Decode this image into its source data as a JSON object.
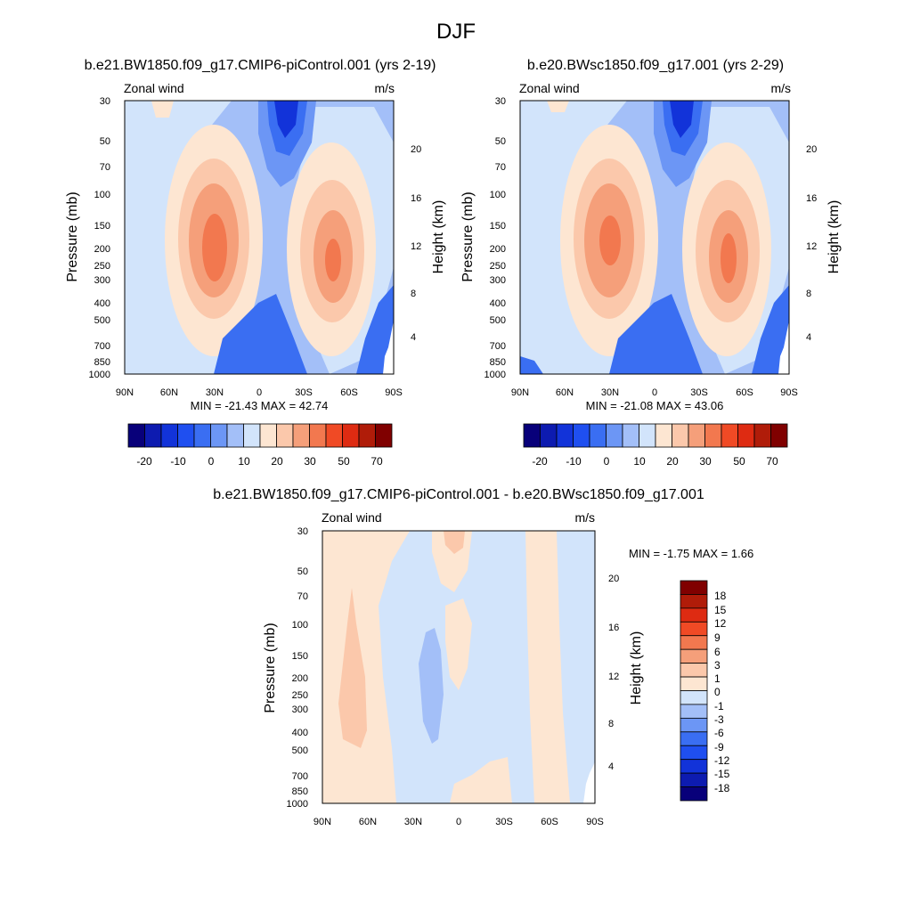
{
  "title": "DJF",
  "colors": {
    "bg": "#ffffff",
    "axis": "#000000",
    "abs_palette": [
      "#08007a",
      "#0d1bb0",
      "#1233d9",
      "#1f4ff0",
      "#3a6ef2",
      "#6c96f5",
      "#a3bff8",
      "#d2e4fb",
      "#fde6d2",
      "#fbc8ab",
      "#f59f7a",
      "#f2784f",
      "#f04a25",
      "#de2b12",
      "#b01c09",
      "#800000"
    ],
    "diff_palette": [
      "#08007a",
      "#0d1bb0",
      "#1233d9",
      "#1f4ff0",
      "#3a6ef2",
      "#6c96f5",
      "#a3bff8",
      "#d2e4fb",
      "#fde6d2",
      "#fbc8ab",
      "#f59f7a",
      "#f2784f",
      "#f04a25",
      "#de2b12",
      "#b01c09",
      "#800000"
    ]
  },
  "chart_data": [
    {
      "type": "heatmap",
      "title": "b.e21.BW1850.f09_g17.CMIP6-piControl.001 (yrs 2-19)",
      "left_label": "Zonal wind",
      "right_label": "m/s",
      "ylabel": "Pressure (mb)",
      "ylabel_right": "Height (km)",
      "xticks": [
        "90N",
        "60N",
        "30N",
        "0",
        "30S",
        "60S",
        "90S"
      ],
      "yticks": [
        "30",
        "50",
        "70",
        "100",
        "150",
        "200",
        "250",
        "300",
        "400",
        "500",
        "700",
        "850",
        "1000"
      ],
      "height_ticks": [
        "20",
        "16",
        "12",
        "8",
        "4"
      ],
      "stats": "MIN = -21.43  MAX =  42.74",
      "min": -21.43,
      "max": 42.74,
      "levels": [
        -25,
        -20,
        -15,
        -10,
        -5,
        0,
        5,
        10,
        15,
        20,
        25,
        30,
        40,
        50,
        60,
        70
      ],
      "colorbar_labels": [
        "-20",
        "-10",
        "0",
        "10",
        "20",
        "30",
        "50",
        "70"
      ],
      "ylim": [
        1000,
        30
      ],
      "xlim": [
        "90N",
        "90S"
      ],
      "features": {
        "jets": [
          {
            "lat": 28,
            "p": 200,
            "speed": 42.7
          },
          {
            "lat": -47,
            "p": 230,
            "speed": 38
          }
        ],
        "easterly_core": {
          "lat": -15,
          "p": 30,
          "speed": -21.4
        }
      }
    },
    {
      "type": "heatmap",
      "title": "b.e20.BWsc1850.f09_g17.001 (yrs 2-29)",
      "left_label": "Zonal wind",
      "right_label": "m/s",
      "ylabel": "Pressure (mb)",
      "ylabel_right": "Height (km)",
      "xticks": [
        "90N",
        "60N",
        "30N",
        "0",
        "30S",
        "60S",
        "90S"
      ],
      "yticks": [
        "30",
        "50",
        "70",
        "100",
        "150",
        "200",
        "250",
        "300",
        "400",
        "500",
        "700",
        "850",
        "1000"
      ],
      "height_ticks": [
        "20",
        "16",
        "12",
        "8",
        "4"
      ],
      "stats": "MIN = -21.08  MAX =  43.06",
      "min": -21.08,
      "max": 43.06,
      "levels": [
        -25,
        -20,
        -15,
        -10,
        -5,
        0,
        5,
        10,
        15,
        20,
        25,
        30,
        40,
        50,
        60,
        70
      ],
      "colorbar_labels": [
        "-20",
        "-10",
        "0",
        "10",
        "20",
        "30",
        "50",
        "70"
      ],
      "ylim": [
        1000,
        30
      ],
      "xlim": [
        "90N",
        "90S"
      ],
      "features": {
        "jets": [
          {
            "lat": 28,
            "p": 200,
            "speed": 43.1
          },
          {
            "lat": -47,
            "p": 230,
            "speed": 38
          }
        ],
        "easterly_core": {
          "lat": -15,
          "p": 30,
          "speed": -21.1
        }
      }
    },
    {
      "type": "heatmap",
      "title": "b.e21.BW1850.f09_g17.CMIP6-piControl.001 - b.e20.BWsc1850.f09_g17.001",
      "left_label": "Zonal wind",
      "right_label": "m/s",
      "ylabel": "Pressure (mb)",
      "ylabel_right": "Height (km)",
      "xticks": [
        "90N",
        "60N",
        "30N",
        "0",
        "30S",
        "60S",
        "90S"
      ],
      "yticks": [
        "30",
        "50",
        "70",
        "100",
        "150",
        "200",
        "250",
        "300",
        "400",
        "500",
        "700",
        "850",
        "1000"
      ],
      "height_ticks": [
        "20",
        "16",
        "12",
        "8",
        "4"
      ],
      "stats": "MIN =  -1.75  MAX =   1.66",
      "min": -1.75,
      "max": 1.66,
      "levels": [
        -18,
        -15,
        -12,
        -9,
        -6,
        -3,
        -1,
        0,
        1,
        3,
        6,
        9,
        12,
        15,
        18
      ],
      "colorbar_labels": [
        "18",
        "15",
        "12",
        "9",
        "6",
        "3",
        "1",
        "0",
        "-1",
        "-3",
        "-6",
        "-9",
        "-12",
        "-15",
        "-18"
      ],
      "ylim": [
        1000,
        30
      ],
      "xlim": [
        "90N",
        "90S"
      ]
    }
  ]
}
